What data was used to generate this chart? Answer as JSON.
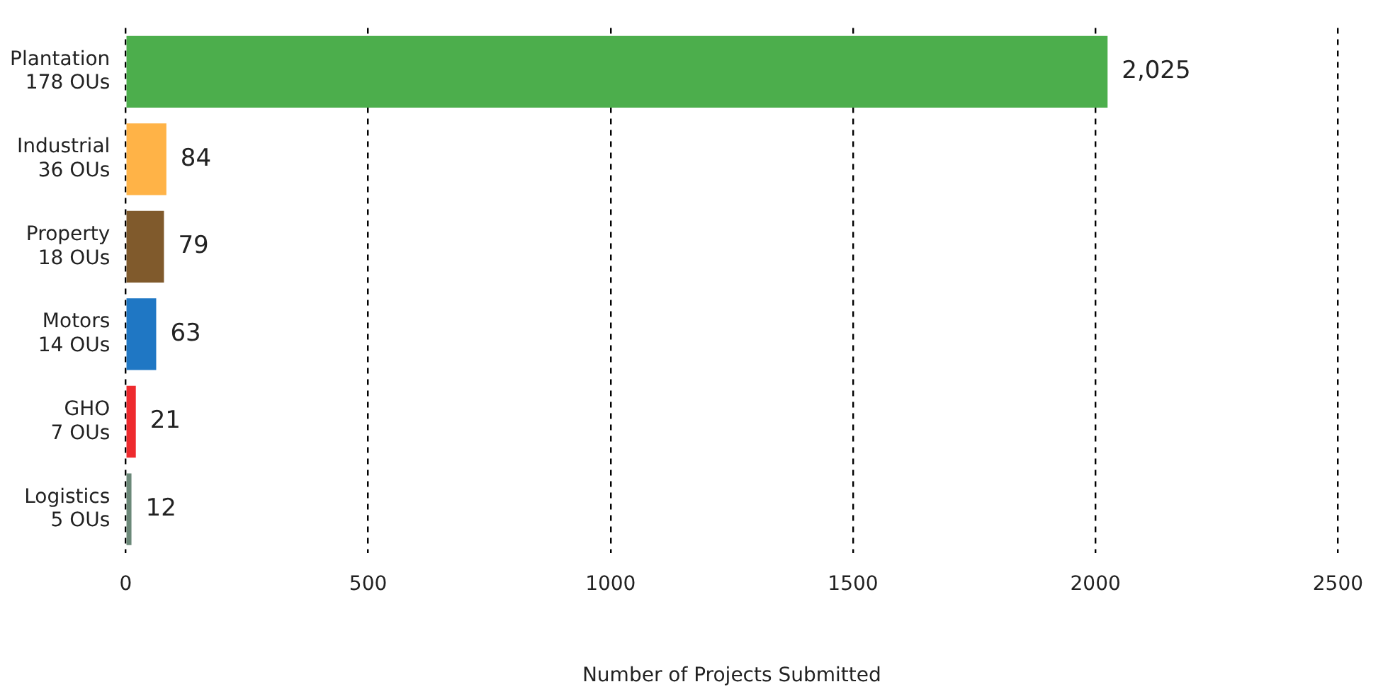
{
  "chart_data": {
    "type": "bar",
    "orientation": "horizontal",
    "xlabel": "Number of Projects Submitted",
    "categories": [
      "Plantation\n178 OUs",
      "Industrial\n36 OUs",
      "Property\n18 OUs",
      "Motors\n14 OUs",
      "GHO\n7 OUs",
      "Logistics\n5 OUs"
    ],
    "values": [
      2025,
      84,
      79,
      63,
      21,
      12
    ],
    "colors": [
      "#4cae4c",
      "#ffb347",
      "#805a2c",
      "#1f77c4",
      "#ee2a2e",
      "#6b8878"
    ],
    "value_labels": [
      "2,025",
      "84",
      "79",
      "63",
      "21",
      "12"
    ],
    "xlim": [
      0,
      2500
    ],
    "xticks": [
      0,
      500,
      1000,
      1500,
      2000,
      2500
    ],
    "grid": "x",
    "legend": false
  }
}
